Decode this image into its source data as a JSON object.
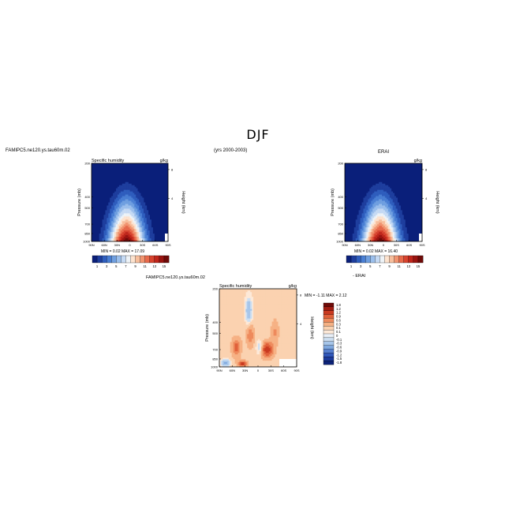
{
  "figure": {
    "title": "DJF",
    "left_case_label": "FAMIPC5.ne120.ys.tau60m.02",
    "years_label": "(yrs 2000-2003)",
    "right_case_label": "ERAI"
  },
  "chart_data": [
    {
      "type": "heatmap",
      "name": "model",
      "title_left": "Specific humidity",
      "units": "g/kg",
      "ylabel": "Pressure (mb)",
      "ylabel_right": "Height (km)",
      "x_tick_labels": [
        "90N",
        "60N",
        "30N",
        "0",
        "30S",
        "60S",
        "90S"
      ],
      "y_tick_labels": [
        "200",
        "400",
        "500",
        "700",
        "850",
        "1000"
      ],
      "y_right_tick_labels": [
        "8",
        "4"
      ],
      "stats_text": "MIN =    0.02    MAX =   17.09",
      "colorbar_labels": [
        "1",
        "3",
        "5",
        "7",
        "9",
        "11",
        "13",
        "15"
      ],
      "min": 0.02,
      "max": 17.09
    },
    {
      "type": "heatmap",
      "name": "obs",
      "title_left": "",
      "title_center": "ERAI",
      "units": "g/kg",
      "ylabel": "Pressure (mb)",
      "ylabel_right": "Height (km)",
      "x_tick_labels": [
        "90N",
        "60N",
        "30N",
        "0",
        "30S",
        "60S",
        "90S"
      ],
      "y_tick_labels": [
        "200",
        "400",
        "500",
        "700",
        "850",
        "1000"
      ],
      "y_right_tick_labels": [
        "8",
        "4"
      ],
      "stats_text": "MIN =    0.02    MAX =   16.40",
      "colorbar_labels": [
        "1",
        "3",
        "5",
        "7",
        "9",
        "11",
        "13",
        "15"
      ],
      "min": 0.02,
      "max": 16.4
    },
    {
      "type": "heatmap",
      "name": "difference",
      "title_case": "FAMIPC5.ne120.ys.tau60m.02",
      "title_left": "Specific humidity",
      "units": "g/kg",
      "ylabel": "Pressure (mb)",
      "ylabel_right": "Height (km)",
      "x_tick_labels": [
        "90N",
        "60N",
        "30N",
        "0",
        "30S",
        "60S",
        "90S"
      ],
      "y_tick_labels": [
        "200",
        "400",
        "500",
        "700",
        "850",
        "1000"
      ],
      "y_right_tick_labels": [
        "8",
        "4"
      ],
      "stats_text": "MIN =   -1.11    MAX =    2.12",
      "minus_label": "- ERAI",
      "colorbar_labels": [
        "1.8",
        "1.2",
        "1.2",
        "0.9",
        "0.6",
        "0.3",
        "0.1",
        "0.1",
        "0",
        "-0.1",
        "-0.3",
        "-0.6",
        "-0.9",
        "-1.2",
        "-1.5",
        "-1.8"
      ],
      "min": -1.11,
      "max": 2.12
    }
  ],
  "colors": {
    "blue_red_scale": [
      "#0a1f7a",
      "#1e3e9e",
      "#2f5ebe",
      "#4a7fd4",
      "#6f9fe0",
      "#9bbfec",
      "#c5daf4",
      "#eef3f7",
      "#fde3cf",
      "#f8bf9d",
      "#f29470",
      "#e86a4b",
      "#d8432e",
      "#c0261b",
      "#9a1410",
      "#6e0a08"
    ],
    "diff_scale": [
      "#6e0a08",
      "#a01c12",
      "#c93a20",
      "#e0603a",
      "#ee8a5c",
      "#f6b184",
      "#fbd2b0",
      "#fde9d8",
      "#eaf0f8",
      "#cddff2",
      "#a7c6ea",
      "#7fa8df",
      "#567fcf",
      "#3057ba",
      "#1b3a9c",
      "#0c2277"
    ]
  }
}
